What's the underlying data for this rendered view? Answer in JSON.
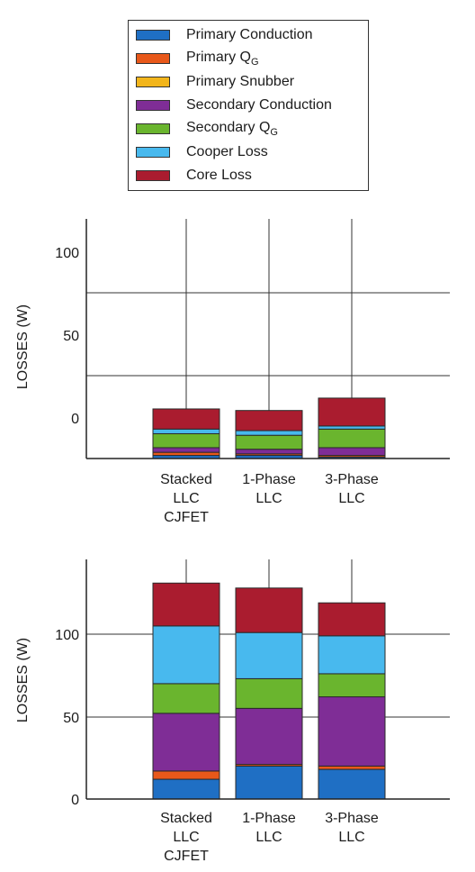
{
  "legend": {
    "items": [
      {
        "label": "Primary Conduction",
        "sub": "",
        "color": "#1f6fc4"
      },
      {
        "label": "Primary Q",
        "sub": "G",
        "color": "#e8581a"
      },
      {
        "label": "Primary Snubber",
        "sub": "",
        "color": "#f2b51b"
      },
      {
        "label": "Secondary Conduction",
        "sub": "",
        "color": "#7f2d96"
      },
      {
        "label": "Secondary Q",
        "sub": "G",
        "color": "#6ab52e"
      },
      {
        "label": "Cooper Loss",
        "sub": "",
        "color": "#48b9ee"
      },
      {
        "label": "Core Loss",
        "sub": "",
        "color": "#aa1c2f"
      }
    ]
  },
  "chart_data": [
    {
      "type": "bar",
      "stacked": true,
      "ylabel": "LOSSES (W)",
      "yticks": [
        "100",
        "50",
        "0"
      ],
      "categories": [
        [
          "Stacked",
          "LLC",
          "CJFET"
        ],
        [
          "1-Phase",
          "LLC"
        ],
        [
          "3-Phase",
          "LLC"
        ]
      ],
      "series": [
        {
          "name": "Primary Conduction",
          "values": [
            2,
            2,
            1
          ]
        },
        {
          "name": "Primary QG",
          "values": [
            2,
            1,
            1
          ]
        },
        {
          "name": "Primary Snubber",
          "values": [
            0,
            0,
            0
          ]
        },
        {
          "name": "Secondary Conduction",
          "values": [
            3,
            3,
            5
          ]
        },
        {
          "name": "Secondary QG",
          "values": [
            9,
            9,
            12
          ]
        },
        {
          "name": "Cooper Loss",
          "values": [
            3,
            3,
            2
          ]
        },
        {
          "name": "Core Loss",
          "values": [
            13,
            13,
            18
          ]
        }
      ]
    },
    {
      "type": "bar",
      "stacked": true,
      "ylabel": "LOSSES (W)",
      "yticks": [
        "100",
        "50",
        "0"
      ],
      "ylim": [
        0,
        145
      ],
      "categories": [
        [
          "Stacked",
          "LLC",
          "CJFET"
        ],
        [
          "1-Phase",
          "LLC"
        ],
        [
          "3-Phase",
          "LLC"
        ]
      ],
      "series": [
        {
          "name": "Primary Conduction",
          "values": [
            12,
            20,
            18
          ]
        },
        {
          "name": "Primary QG",
          "values": [
            5,
            1,
            2
          ]
        },
        {
          "name": "Primary Snubber",
          "values": [
            0,
            0,
            0
          ]
        },
        {
          "name": "Secondary Conduction",
          "values": [
            35,
            34,
            42
          ]
        },
        {
          "name": "Secondary QG",
          "values": [
            18,
            18,
            14
          ]
        },
        {
          "name": "Cooper Loss",
          "values": [
            35,
            28,
            23
          ]
        },
        {
          "name": "Core Loss",
          "values": [
            26,
            27,
            20
          ]
        }
      ]
    }
  ]
}
